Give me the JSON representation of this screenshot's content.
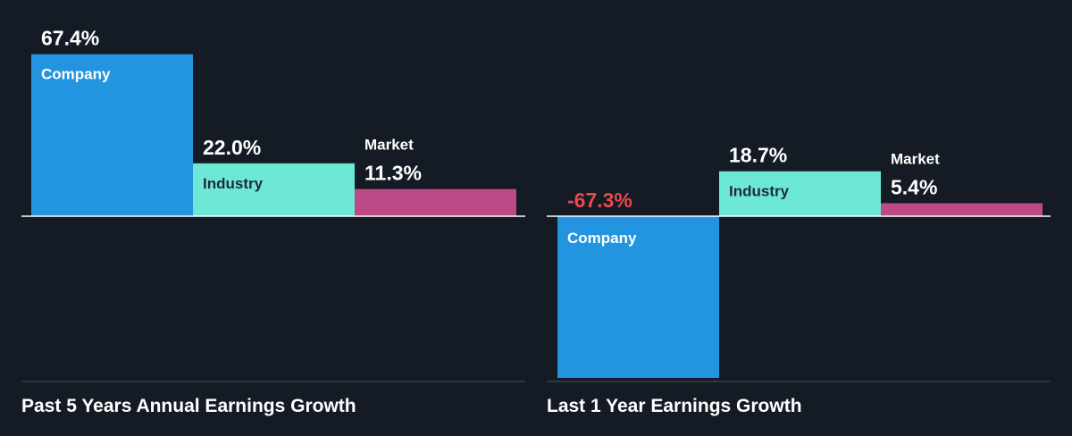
{
  "colors": {
    "background": "#151b24",
    "company": "#2394e0",
    "industry": "#6ee8d6",
    "market": "#bd4a87",
    "negative_label": "#e84a4a",
    "label_text": "#ffffff",
    "inner_label_dark": "#1e2b38",
    "axis": "#ffffff",
    "divider": "#4a525c"
  },
  "chart_data": [
    {
      "type": "bar",
      "title": "Past 5 Years Annual Earnings Growth",
      "categories": [
        "Company",
        "Industry",
        "Market"
      ],
      "values": [
        67.4,
        22.0,
        11.3
      ],
      "value_labels": [
        "67.4%",
        "22.0%",
        "11.3%"
      ],
      "unit": "%",
      "grid": false,
      "legend": "none"
    },
    {
      "type": "bar",
      "title": "Last 1 Year Earnings Growth",
      "categories": [
        "Company",
        "Industry",
        "Market"
      ],
      "values": [
        -67.3,
        18.7,
        5.4
      ],
      "value_labels": [
        "-67.3%",
        "18.7%",
        "5.4%"
      ],
      "unit": "%",
      "grid": false,
      "legend": "none"
    }
  ]
}
